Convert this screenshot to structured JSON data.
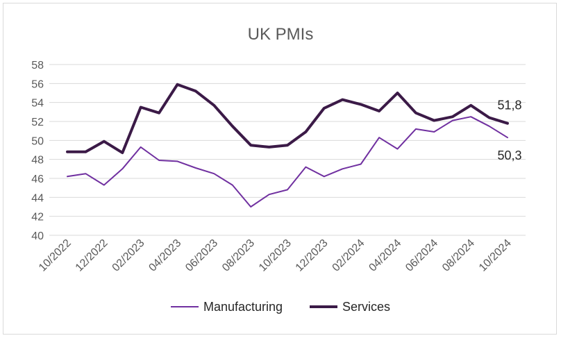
{
  "chart_data": {
    "type": "line",
    "title": "UK PMIs",
    "xlabel": "",
    "ylabel": "",
    "ylim": [
      40,
      58
    ],
    "yticks": [
      40,
      42,
      44,
      46,
      48,
      50,
      52,
      54,
      56,
      58
    ],
    "grid": true,
    "legend": "bottom",
    "categories": [
      "10/2022",
      "11/2022",
      "12/2022",
      "01/2023",
      "02/2023",
      "03/2023",
      "04/2023",
      "05/2023",
      "06/2023",
      "07/2023",
      "08/2023",
      "09/2023",
      "10/2023",
      "11/2023",
      "12/2023",
      "01/2024",
      "02/2024",
      "03/2024",
      "04/2024",
      "05/2024",
      "06/2024",
      "07/2024",
      "08/2024",
      "09/2024",
      "10/2024"
    ],
    "tick_labels": [
      "10/2022",
      "12/2022",
      "02/2023",
      "04/2023",
      "06/2023",
      "08/2023",
      "10/2023",
      "12/2023",
      "02/2024",
      "04/2024",
      "06/2024",
      "08/2024",
      "10/2024"
    ],
    "series": [
      {
        "name": "Manufacturing",
        "color": "#7030a0",
        "values": [
          46.2,
          46.5,
          45.3,
          47.0,
          49.3,
          47.9,
          47.8,
          47.1,
          46.5,
          45.3,
          43.0,
          44.3,
          44.8,
          47.2,
          46.2,
          47.0,
          47.5,
          50.3,
          49.1,
          51.2,
          50.9,
          52.1,
          52.5,
          51.5,
          50.3
        ],
        "end_label": "50,3"
      },
      {
        "name": "Services",
        "color": "#3b1a47",
        "values": [
          48.8,
          48.8,
          49.9,
          48.7,
          53.5,
          52.9,
          55.9,
          55.2,
          53.7,
          51.5,
          49.5,
          49.3,
          49.5,
          50.9,
          53.4,
          54.3,
          53.8,
          53.1,
          55.0,
          52.9,
          52.1,
          52.5,
          53.7,
          52.4,
          51.8
        ],
        "end_label": "51,8"
      }
    ]
  }
}
